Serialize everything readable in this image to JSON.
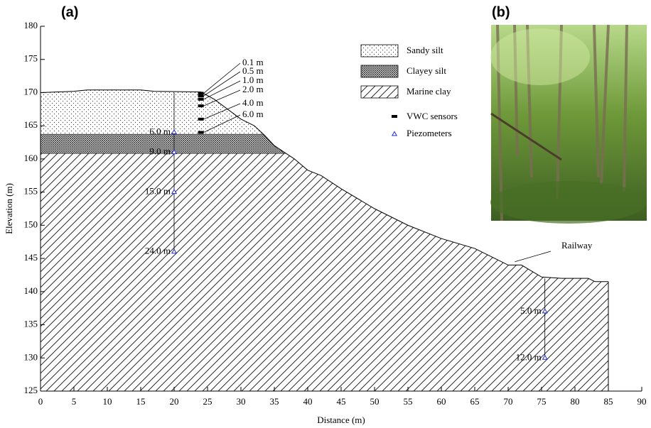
{
  "panel_labels": [
    "(a)",
    "(b)"
  ],
  "chart_data": {
    "type": "cross-section",
    "xlabel": "Distance (m)",
    "ylabel": "Elevation (m)",
    "xlim": [
      0,
      90
    ],
    "ylim": [
      125,
      180
    ],
    "xticks": [
      0,
      5,
      10,
      15,
      20,
      25,
      30,
      35,
      40,
      45,
      50,
      55,
      60,
      65,
      70,
      75,
      80,
      85,
      90
    ],
    "yticks": [
      125,
      130,
      135,
      140,
      145,
      150,
      155,
      160,
      165,
      170,
      175,
      180
    ],
    "ground": {
      "x": [
        0,
        5,
        7,
        15,
        17,
        24,
        26,
        28,
        30,
        32,
        33.5,
        35,
        36.5,
        38,
        40,
        42,
        45,
        50,
        55,
        60,
        65,
        68,
        70,
        72,
        75,
        78,
        82,
        83,
        85
      ],
      "y": [
        170,
        170.2,
        170.4,
        170.4,
        170.2,
        170.1,
        169,
        167.5,
        166,
        165,
        163.6,
        162,
        161,
        160,
        158.3,
        157.5,
        155.5,
        152.5,
        150,
        148,
        146.5,
        145,
        144,
        144,
        142.2,
        142,
        142,
        141.5,
        141.5
      ]
    },
    "layers": [
      {
        "name": "Sandy silt",
        "bottom": 163.7
      },
      {
        "name": "Clayey silt",
        "bottom": 160.8
      },
      {
        "name": "Marine clay",
        "bottom": 125
      }
    ],
    "sensor_legend": [
      "VWC sensors",
      "Piezometers"
    ],
    "vwc": {
      "x": 24,
      "surface": 170,
      "depths": [
        0.1,
        0.5,
        1.0,
        2.0,
        4.0,
        6.0
      ],
      "depth_labels": [
        "0.1 m",
        "0.5 m",
        "1.0 m",
        "2.0 m",
        "4.0 m",
        "6.0 m"
      ]
    },
    "piezometers": [
      {
        "x": 20,
        "surface": 170,
        "depths": [
          6.0,
          9.0,
          15.0,
          24.0
        ],
        "depth_labels": [
          "6.0 m",
          "9.0 m",
          "15.0 m",
          "24.0 m"
        ]
      },
      {
        "x": 75.5,
        "surface": 142,
        "depths": [
          5.0,
          12.0
        ],
        "depth_labels": [
          "5.0 m",
          "12.0 m"
        ]
      }
    ],
    "annotation": {
      "text": "Railway",
      "x": 71,
      "y": 144.5
    }
  }
}
